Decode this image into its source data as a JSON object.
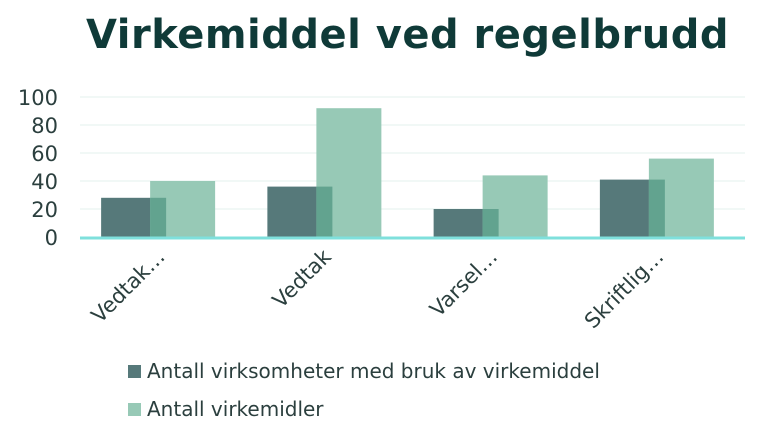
{
  "chart_data": {
    "type": "bar",
    "title": "Virkemiddel ved regelbrudd",
    "xlabel": "",
    "ylabel": "",
    "categories": [
      "Vedtak…",
      "Vedtak",
      "Varsel…",
      "Skriftlig…"
    ],
    "series": [
      {
        "name": "Antall virksomheter med bruk av virkemiddel",
        "values": [
          28,
          36,
          20,
          41
        ],
        "color": "#56797a"
      },
      {
        "name": "Antall virkemidler",
        "values": [
          40,
          92,
          44,
          56
        ],
        "color": "#97c9b6"
      }
    ],
    "ylim": [
      0,
      100
    ],
    "yticks": [
      0,
      20,
      40,
      60,
      80,
      100
    ],
    "grid": true,
    "legend_position": "bottom"
  }
}
